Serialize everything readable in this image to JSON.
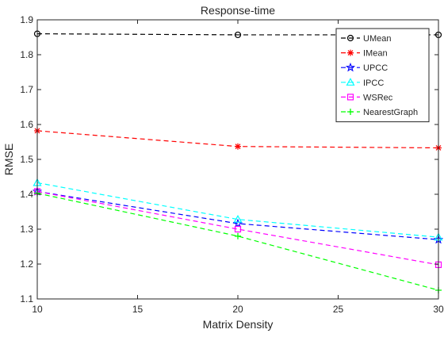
{
  "chart_data": {
    "type": "line",
    "title": "Response-time",
    "xlabel": "Matrix Density",
    "ylabel": "RMSE",
    "xlim": [
      10,
      30
    ],
    "ylim": [
      1.1,
      1.9
    ],
    "xticks": [
      10,
      15,
      20,
      25,
      30
    ],
    "yticks": [
      1.1,
      1.2,
      1.3,
      1.4,
      1.5,
      1.6,
      1.7,
      1.8,
      1.9
    ],
    "x": [
      10,
      20,
      30
    ],
    "grid": false,
    "legend_position": "top-right",
    "series": [
      {
        "name": "UMean",
        "values": [
          1.86,
          1.857,
          1.857
        ],
        "color": "#000000",
        "marker": "circle"
      },
      {
        "name": "IMean",
        "values": [
          1.582,
          1.537,
          1.533
        ],
        "color": "#ff0000",
        "marker": "asterisk"
      },
      {
        "name": "UPCC",
        "values": [
          1.408,
          1.316,
          1.27
        ],
        "color": "#0000ff",
        "marker": "star"
      },
      {
        "name": "IPCC",
        "values": [
          1.433,
          1.328,
          1.277
        ],
        "color": "#00ffff",
        "marker": "triangle"
      },
      {
        "name": "WSRec",
        "values": [
          1.408,
          1.3,
          1.198
        ],
        "color": "#ff00ff",
        "marker": "square"
      },
      {
        "name": "NearestGraph",
        "values": [
          1.403,
          1.28,
          1.125
        ],
        "color": "#00ff00",
        "marker": "plus"
      }
    ]
  }
}
